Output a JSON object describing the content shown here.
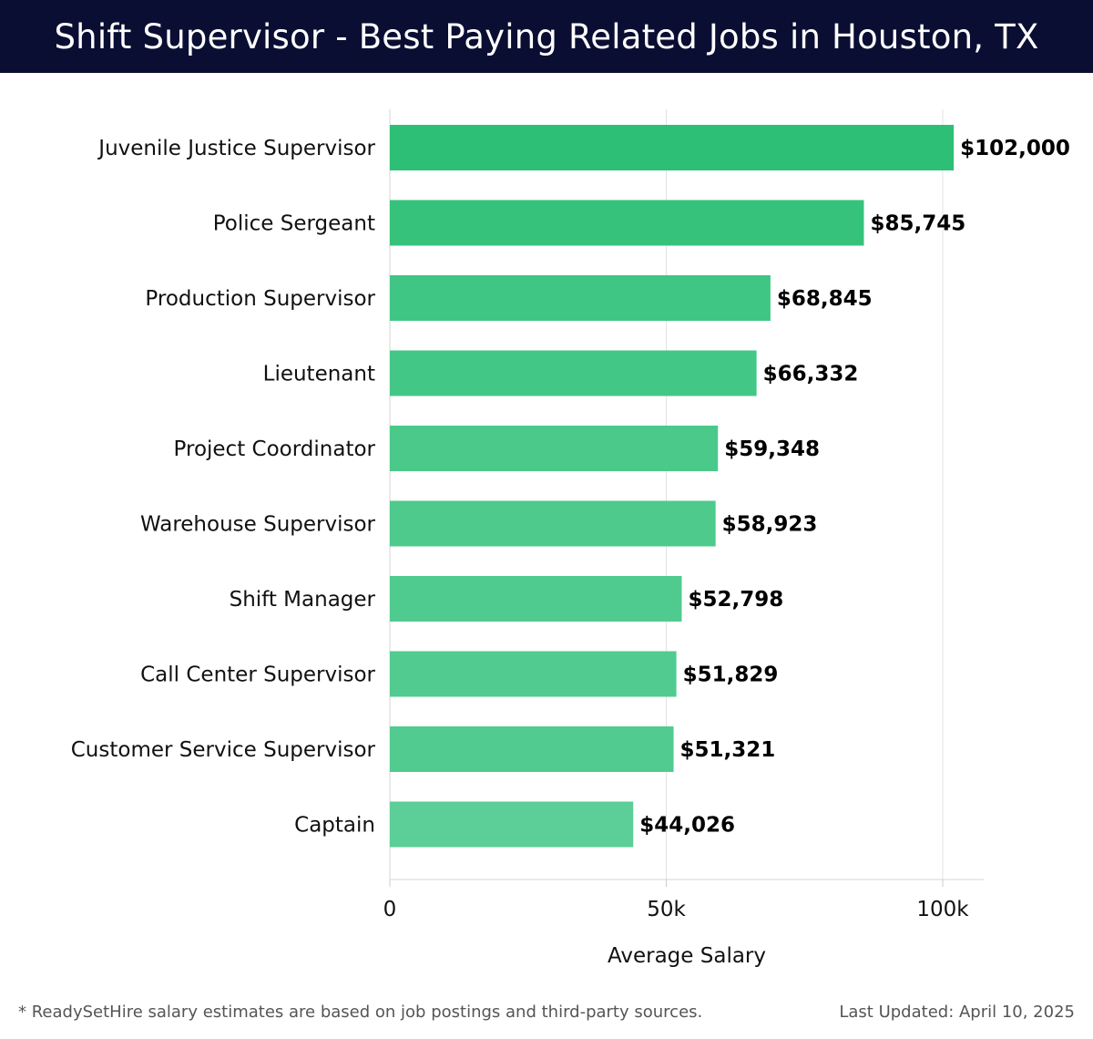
{
  "header": {
    "title": "Shift Supervisor - Best Paying Related Jobs in Houston, TX"
  },
  "chart_data": {
    "type": "bar",
    "orientation": "horizontal",
    "categories": [
      "Juvenile Justice Supervisor",
      "Police Sergeant",
      "Production Supervisor",
      "Lieutenant",
      "Project Coordinator",
      "Warehouse Supervisor",
      "Shift Manager",
      "Call Center Supervisor",
      "Customer Service Supervisor",
      "Captain"
    ],
    "values": [
      102000,
      85745,
      68845,
      66332,
      59348,
      58923,
      52798,
      51829,
      51321,
      44026
    ],
    "value_labels": [
      "$102,000",
      "$85,745",
      "$68,845",
      "$66,332",
      "$59,348",
      "$58,923",
      "$52,798",
      "$51,829",
      "$51,321",
      "$44,026"
    ],
    "xlabel": "Average Salary",
    "ylabel": "",
    "xlim": [
      0,
      107000
    ],
    "x_ticks": [
      0,
      50000,
      100000
    ],
    "x_tick_labels": [
      "0",
      "50k",
      "100k"
    ],
    "grid": "vertical",
    "legend": "none",
    "bar_colors": [
      "#2ebf76",
      "#36c27b",
      "#40c684",
      "#43c786",
      "#4bc98b",
      "#4dca8c",
      "#50cb8f",
      "#51cb90",
      "#51cb90",
      "#5bcf97"
    ]
  },
  "footer": {
    "note": "* ReadySetHire salary estimates are based on job postings and third-party sources.",
    "updated": "Last Updated: April 10, 2025"
  }
}
